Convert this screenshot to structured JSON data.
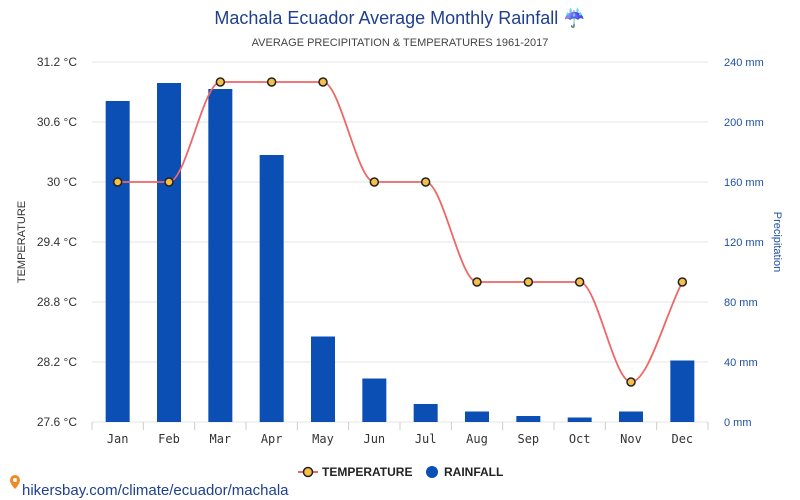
{
  "header": {
    "title": "Machala Ecuador Average Monthly Rainfall ☔",
    "subtitle": "AVERAGE PRECIPITATION & TEMPERATURES 1961-2017"
  },
  "footer": {
    "source": "hikersbay.com/climate/ecuador/machala"
  },
  "colors": {
    "bar": "#0b4fb5",
    "line": "#ee6666",
    "marker_fill": "#f5c04a",
    "marker_stroke": "#222222",
    "grid": "#e6e6e6"
  },
  "chart_data": {
    "type": "bar",
    "categories": [
      "Jan",
      "Feb",
      "Mar",
      "Apr",
      "May",
      "Jun",
      "Jul",
      "Aug",
      "Sep",
      "Oct",
      "Nov",
      "Dec"
    ],
    "series": [
      {
        "name": "RAINFALL",
        "type": "bar",
        "axis": "right",
        "values": [
          214,
          226,
          222,
          178,
          57,
          29,
          12,
          7,
          4,
          3,
          7,
          41
        ]
      },
      {
        "name": "TEMPERATURE",
        "type": "line",
        "axis": "left",
        "values": [
          30,
          30,
          31,
          31,
          31,
          30,
          30,
          29,
          29,
          29,
          28,
          29
        ]
      }
    ],
    "ylabel_left": "TEMPERATURE",
    "ylabel_right": "Precipitation",
    "ylim_left": [
      27.6,
      31.2
    ],
    "ylim_right": [
      0,
      240
    ],
    "yticks_left": [
      "31.2 °C",
      "30.6 °C",
      "30 °C",
      "29.4 °C",
      "28.8 °C",
      "28.2 °C",
      "27.6 °C"
    ],
    "yticks_right": [
      "240 mm",
      "200 mm",
      "160 mm",
      "120 mm",
      "80 mm",
      "40 mm",
      "0 mm"
    ],
    "grid": true,
    "legend_position": "bottom"
  }
}
